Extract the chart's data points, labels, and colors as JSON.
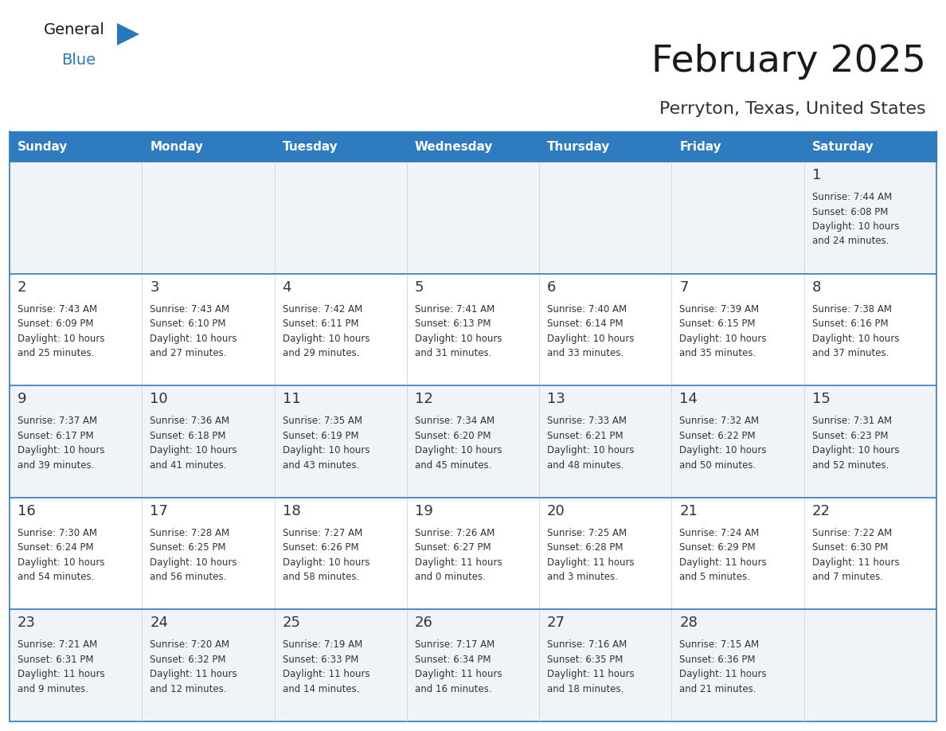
{
  "title": "February 2025",
  "subtitle": "Perryton, Texas, United States",
  "header_bg": "#2E7BBF",
  "header_text": "#FFFFFF",
  "cell_bg_odd": "#F0F4F8",
  "cell_bg_even": "#FFFFFF",
  "border_color": "#2E7BBF",
  "day_names": [
    "Sunday",
    "Monday",
    "Tuesday",
    "Wednesday",
    "Thursday",
    "Friday",
    "Saturday"
  ],
  "title_color": "#1a1a1a",
  "subtitle_color": "#333333",
  "day_number_color": "#333333",
  "cell_text_color": "#333333",
  "logo_general_color": "#1a1a1a",
  "logo_blue_color": "#2878BE",
  "logo_triangle_color": "#2878BE",
  "weeks": [
    [
      {
        "day": null,
        "info": null
      },
      {
        "day": null,
        "info": null
      },
      {
        "day": null,
        "info": null
      },
      {
        "day": null,
        "info": null
      },
      {
        "day": null,
        "info": null
      },
      {
        "day": null,
        "info": null
      },
      {
        "day": 1,
        "info": "Sunrise: 7:44 AM\nSunset: 6:08 PM\nDaylight: 10 hours\nand 24 minutes."
      }
    ],
    [
      {
        "day": 2,
        "info": "Sunrise: 7:43 AM\nSunset: 6:09 PM\nDaylight: 10 hours\nand 25 minutes."
      },
      {
        "day": 3,
        "info": "Sunrise: 7:43 AM\nSunset: 6:10 PM\nDaylight: 10 hours\nand 27 minutes."
      },
      {
        "day": 4,
        "info": "Sunrise: 7:42 AM\nSunset: 6:11 PM\nDaylight: 10 hours\nand 29 minutes."
      },
      {
        "day": 5,
        "info": "Sunrise: 7:41 AM\nSunset: 6:13 PM\nDaylight: 10 hours\nand 31 minutes."
      },
      {
        "day": 6,
        "info": "Sunrise: 7:40 AM\nSunset: 6:14 PM\nDaylight: 10 hours\nand 33 minutes."
      },
      {
        "day": 7,
        "info": "Sunrise: 7:39 AM\nSunset: 6:15 PM\nDaylight: 10 hours\nand 35 minutes."
      },
      {
        "day": 8,
        "info": "Sunrise: 7:38 AM\nSunset: 6:16 PM\nDaylight: 10 hours\nand 37 minutes."
      }
    ],
    [
      {
        "day": 9,
        "info": "Sunrise: 7:37 AM\nSunset: 6:17 PM\nDaylight: 10 hours\nand 39 minutes."
      },
      {
        "day": 10,
        "info": "Sunrise: 7:36 AM\nSunset: 6:18 PM\nDaylight: 10 hours\nand 41 minutes."
      },
      {
        "day": 11,
        "info": "Sunrise: 7:35 AM\nSunset: 6:19 PM\nDaylight: 10 hours\nand 43 minutes."
      },
      {
        "day": 12,
        "info": "Sunrise: 7:34 AM\nSunset: 6:20 PM\nDaylight: 10 hours\nand 45 minutes."
      },
      {
        "day": 13,
        "info": "Sunrise: 7:33 AM\nSunset: 6:21 PM\nDaylight: 10 hours\nand 48 minutes."
      },
      {
        "day": 14,
        "info": "Sunrise: 7:32 AM\nSunset: 6:22 PM\nDaylight: 10 hours\nand 50 minutes."
      },
      {
        "day": 15,
        "info": "Sunrise: 7:31 AM\nSunset: 6:23 PM\nDaylight: 10 hours\nand 52 minutes."
      }
    ],
    [
      {
        "day": 16,
        "info": "Sunrise: 7:30 AM\nSunset: 6:24 PM\nDaylight: 10 hours\nand 54 minutes."
      },
      {
        "day": 17,
        "info": "Sunrise: 7:28 AM\nSunset: 6:25 PM\nDaylight: 10 hours\nand 56 minutes."
      },
      {
        "day": 18,
        "info": "Sunrise: 7:27 AM\nSunset: 6:26 PM\nDaylight: 10 hours\nand 58 minutes."
      },
      {
        "day": 19,
        "info": "Sunrise: 7:26 AM\nSunset: 6:27 PM\nDaylight: 11 hours\nand 0 minutes."
      },
      {
        "day": 20,
        "info": "Sunrise: 7:25 AM\nSunset: 6:28 PM\nDaylight: 11 hours\nand 3 minutes."
      },
      {
        "day": 21,
        "info": "Sunrise: 7:24 AM\nSunset: 6:29 PM\nDaylight: 11 hours\nand 5 minutes."
      },
      {
        "day": 22,
        "info": "Sunrise: 7:22 AM\nSunset: 6:30 PM\nDaylight: 11 hours\nand 7 minutes."
      }
    ],
    [
      {
        "day": 23,
        "info": "Sunrise: 7:21 AM\nSunset: 6:31 PM\nDaylight: 11 hours\nand 9 minutes."
      },
      {
        "day": 24,
        "info": "Sunrise: 7:20 AM\nSunset: 6:32 PM\nDaylight: 11 hours\nand 12 minutes."
      },
      {
        "day": 25,
        "info": "Sunrise: 7:19 AM\nSunset: 6:33 PM\nDaylight: 11 hours\nand 14 minutes."
      },
      {
        "day": 26,
        "info": "Sunrise: 7:17 AM\nSunset: 6:34 PM\nDaylight: 11 hours\nand 16 minutes."
      },
      {
        "day": 27,
        "info": "Sunrise: 7:16 AM\nSunset: 6:35 PM\nDaylight: 11 hours\nand 18 minutes."
      },
      {
        "day": 28,
        "info": "Sunrise: 7:15 AM\nSunset: 6:36 PM\nDaylight: 11 hours\nand 21 minutes."
      },
      {
        "day": null,
        "info": null
      }
    ]
  ]
}
